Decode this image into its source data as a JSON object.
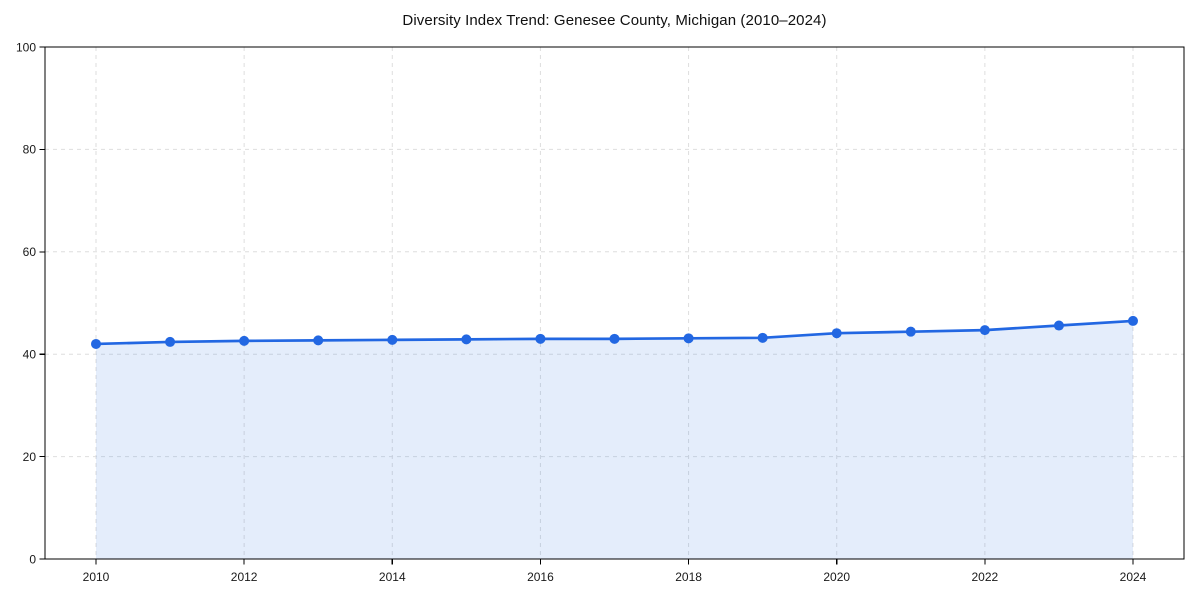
{
  "chart_data": {
    "type": "area",
    "title": "Diversity Index Trend: Genesee County, Michigan (2010–2024)",
    "series_name": "Diversity Index",
    "x": [
      2010,
      2011,
      2012,
      2013,
      2014,
      2015,
      2016,
      2017,
      2018,
      2019,
      2020,
      2021,
      2022,
      2023,
      2024
    ],
    "values": [
      42.0,
      42.4,
      42.6,
      42.7,
      42.8,
      42.9,
      43.0,
      43.0,
      43.1,
      43.2,
      44.1,
      44.4,
      44.7,
      45.6,
      46.5
    ],
    "xlabel": "",
    "ylabel": "",
    "xlim": [
      2009.3,
      2024.7
    ],
    "ylim": [
      0,
      100
    ],
    "xticks": [
      2010,
      2012,
      2014,
      2016,
      2018,
      2020,
      2022,
      2024
    ],
    "yticks": [
      0,
      20,
      40,
      60,
      80,
      100
    ],
    "grid": true,
    "grid_style": "dashed",
    "legend": "none",
    "marker": "circle",
    "colors": {
      "line": "#2267e2",
      "marker": "#2267e2",
      "fill": "#2267e2",
      "fill_opacity": 0.12,
      "grid": "#dedede",
      "spine": "#000000",
      "tick": "#000000",
      "tick_label": "#191919",
      "title": "#101010",
      "background": "#ffffff"
    }
  }
}
